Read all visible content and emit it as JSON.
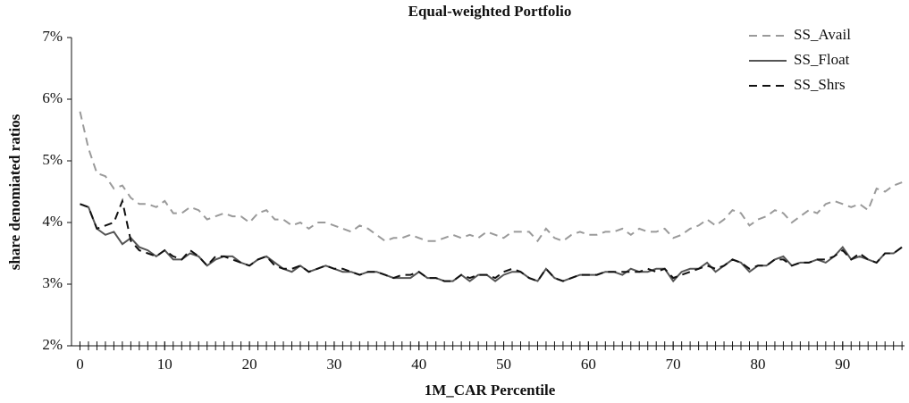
{
  "chart_data": {
    "type": "line",
    "title": "Equal-weighted Portfolio",
    "x_label": "1M_CAR Percentile",
    "y_label": "share denomiated ratios",
    "x": [
      0,
      1,
      2,
      3,
      4,
      5,
      6,
      7,
      8,
      9,
      10,
      11,
      12,
      13,
      14,
      15,
      16,
      17,
      18,
      19,
      20,
      21,
      22,
      23,
      24,
      25,
      26,
      27,
      28,
      29,
      30,
      31,
      32,
      33,
      34,
      35,
      36,
      37,
      38,
      39,
      40,
      41,
      42,
      43,
      44,
      45,
      46,
      47,
      48,
      49,
      50,
      51,
      52,
      53,
      54,
      55,
      56,
      57,
      58,
      59,
      60,
      61,
      62,
      63,
      64,
      65,
      66,
      67,
      68,
      69,
      70,
      71,
      72,
      73,
      74,
      75,
      76,
      77,
      78,
      79,
      80,
      81,
      82,
      83,
      84,
      85,
      86,
      87,
      88,
      89,
      90,
      91,
      92,
      93,
      94,
      95,
      96,
      97
    ],
    "xlim": [
      -1,
      97.3
    ],
    "xticks": [
      0,
      10,
      20,
      30,
      40,
      50,
      60,
      70,
      80,
      90
    ],
    "ylim": [
      2,
      7
    ],
    "yticks": [
      {
        "value": 2,
        "label": "2%"
      },
      {
        "value": 3,
        "label": "3%"
      },
      {
        "value": 4,
        "label": "4%"
      },
      {
        "value": 5,
        "label": "5%"
      },
      {
        "value": 6,
        "label": "6%"
      },
      {
        "value": 7,
        "label": "7%"
      }
    ],
    "legend": "top-right",
    "series": [
      {
        "name": "SS_Avail",
        "color": "#9a9a9a",
        "line_style": "dashed",
        "values": [
          5.8,
          5.2,
          4.8,
          4.75,
          4.55,
          4.6,
          4.4,
          4.3,
          4.3,
          4.25,
          4.35,
          4.15,
          4.15,
          4.25,
          4.2,
          4.05,
          4.1,
          4.15,
          4.1,
          4.1,
          4.0,
          4.15,
          4.2,
          4.05,
          4.05,
          3.95,
          4.0,
          3.9,
          4.0,
          4.0,
          3.95,
          3.9,
          3.85,
          3.95,
          3.9,
          3.8,
          3.7,
          3.75,
          3.75,
          3.8,
          3.75,
          3.7,
          3.7,
          3.75,
          3.8,
          3.75,
          3.8,
          3.75,
          3.85,
          3.8,
          3.75,
          3.85,
          3.85,
          3.85,
          3.7,
          3.9,
          3.75,
          3.7,
          3.8,
          3.85,
          3.8,
          3.8,
          3.85,
          3.85,
          3.9,
          3.8,
          3.9,
          3.85,
          3.85,
          3.9,
          3.75,
          3.8,
          3.9,
          3.95,
          4.05,
          3.95,
          4.05,
          4.2,
          4.15,
          3.95,
          4.05,
          4.1,
          4.2,
          4.15,
          4.0,
          4.1,
          4.2,
          4.15,
          4.3,
          4.35,
          4.3,
          4.25,
          4.3,
          4.2,
          4.55,
          4.5,
          4.6,
          4.65
        ]
      },
      {
        "name": "SS_Float",
        "color": "#555555",
        "line_style": "solid",
        "values": [
          4.3,
          4.25,
          3.9,
          3.8,
          3.85,
          3.65,
          3.75,
          3.6,
          3.55,
          3.45,
          3.55,
          3.4,
          3.4,
          3.5,
          3.45,
          3.3,
          3.4,
          3.45,
          3.45,
          3.35,
          3.3,
          3.4,
          3.45,
          3.35,
          3.25,
          3.2,
          3.3,
          3.2,
          3.25,
          3.3,
          3.25,
          3.2,
          3.2,
          3.15,
          3.2,
          3.2,
          3.15,
          3.1,
          3.1,
          3.1,
          3.2,
          3.1,
          3.1,
          3.05,
          3.05,
          3.15,
          3.05,
          3.15,
          3.15,
          3.05,
          3.15,
          3.2,
          3.2,
          3.1,
          3.05,
          3.25,
          3.1,
          3.05,
          3.1,
          3.15,
          3.15,
          3.15,
          3.2,
          3.2,
          3.15,
          3.25,
          3.2,
          3.2,
          3.25,
          3.25,
          3.05,
          3.2,
          3.25,
          3.25,
          3.35,
          3.2,
          3.3,
          3.4,
          3.35,
          3.2,
          3.3,
          3.3,
          3.4,
          3.45,
          3.3,
          3.35,
          3.35,
          3.4,
          3.35,
          3.45,
          3.6,
          3.4,
          3.45,
          3.4,
          3.35,
          3.5,
          3.5,
          3.6
        ]
      },
      {
        "name": "SS_Shrs",
        "color": "#111111",
        "line_style": "dashed",
        "values": [
          4.3,
          4.25,
          3.9,
          3.95,
          4.0,
          4.35,
          3.7,
          3.55,
          3.5,
          3.45,
          3.55,
          3.45,
          3.4,
          3.55,
          3.45,
          3.3,
          3.45,
          3.45,
          3.4,
          3.35,
          3.3,
          3.4,
          3.45,
          3.3,
          3.25,
          3.25,
          3.3,
          3.2,
          3.25,
          3.3,
          3.25,
          3.25,
          3.2,
          3.15,
          3.2,
          3.2,
          3.15,
          3.1,
          3.15,
          3.15,
          3.2,
          3.1,
          3.1,
          3.05,
          3.05,
          3.15,
          3.1,
          3.15,
          3.15,
          3.1,
          3.2,
          3.25,
          3.2,
          3.1,
          3.05,
          3.25,
          3.1,
          3.05,
          3.1,
          3.15,
          3.15,
          3.15,
          3.2,
          3.2,
          3.2,
          3.2,
          3.2,
          3.25,
          3.2,
          3.25,
          3.1,
          3.15,
          3.2,
          3.25,
          3.3,
          3.25,
          3.3,
          3.4,
          3.35,
          3.25,
          3.3,
          3.3,
          3.4,
          3.4,
          3.3,
          3.35,
          3.35,
          3.4,
          3.4,
          3.45,
          3.55,
          3.4,
          3.5,
          3.4,
          3.35,
          3.5,
          3.5,
          3.6
        ]
      }
    ]
  }
}
